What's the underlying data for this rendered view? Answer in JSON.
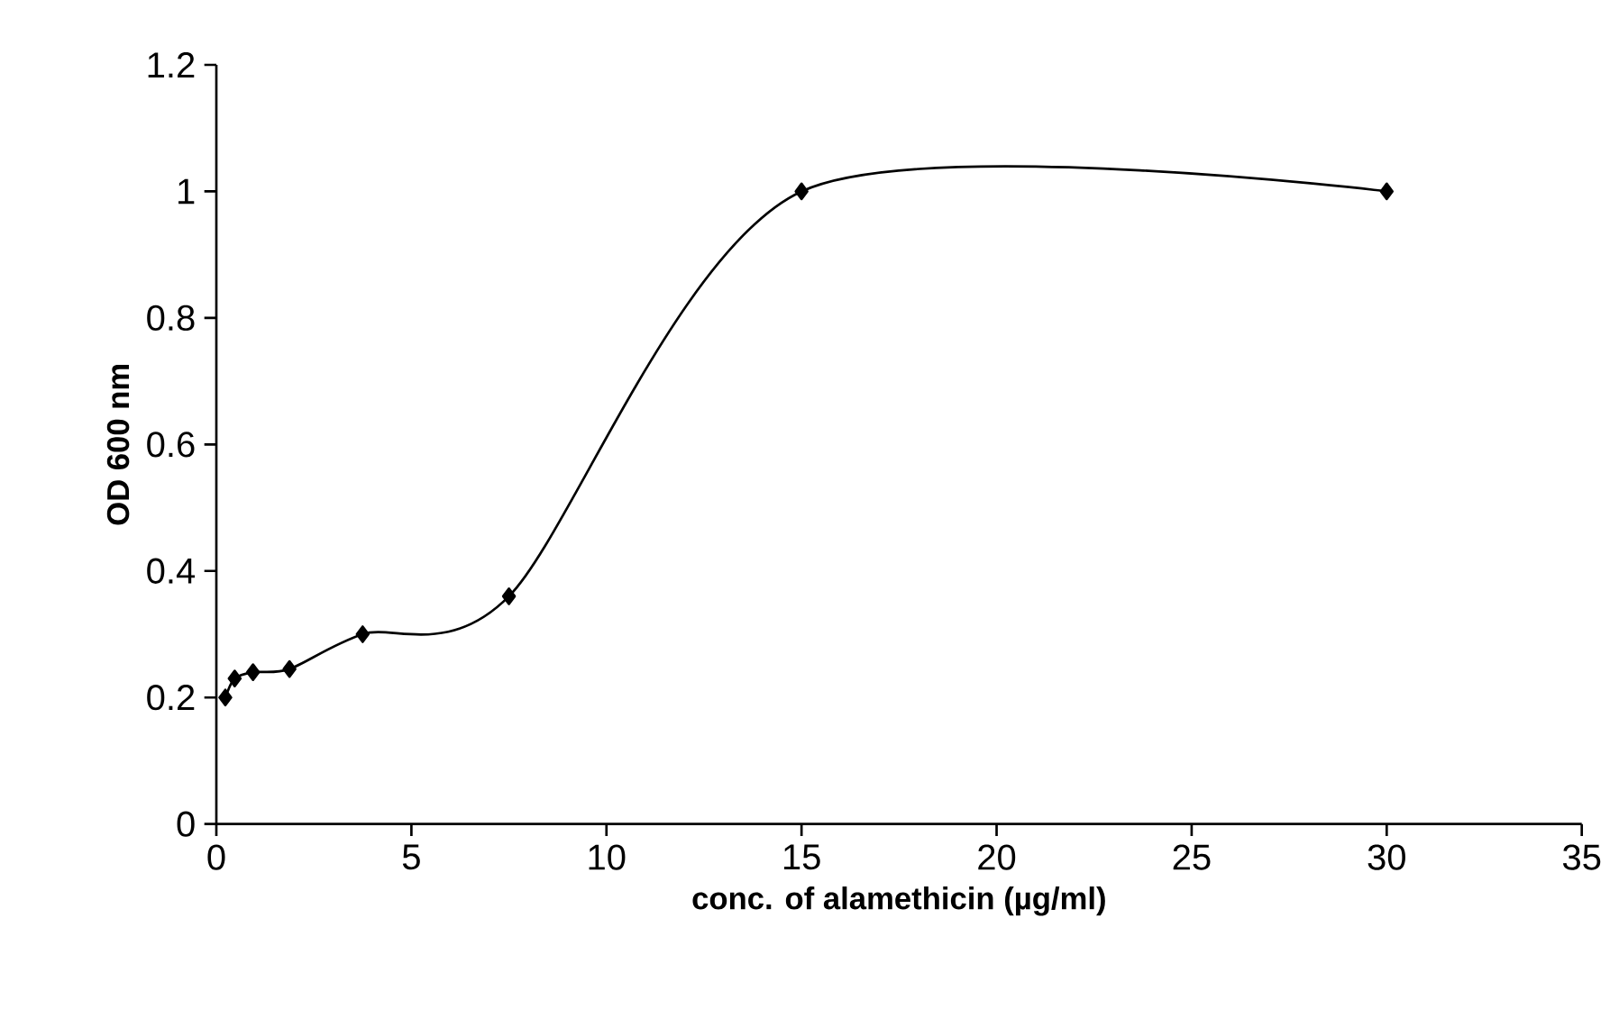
{
  "chart_data": {
    "type": "line",
    "xlabel": "conc. of alamethicin (µg/ml)",
    "ylabel": "OD 600 nm",
    "x": [
      0.23,
      0.47,
      0.94,
      1.875,
      3.75,
      7.5,
      15,
      30
    ],
    "series": [
      {
        "color": "#000000",
        "values": [
          0.2,
          0.23,
          0.24,
          0.245,
          0.3,
          0.36,
          1.0,
          1.0
        ]
      }
    ],
    "xlim": [
      0,
      35
    ],
    "ylim": [
      0,
      1.2
    ],
    "xticks": [
      0,
      5,
      10,
      15,
      20,
      25,
      30,
      35
    ],
    "yticks": [
      0,
      0.2,
      0.4,
      0.6,
      0.8,
      1,
      1.2
    ],
    "marker": "diamond",
    "line_style": "solid"
  }
}
